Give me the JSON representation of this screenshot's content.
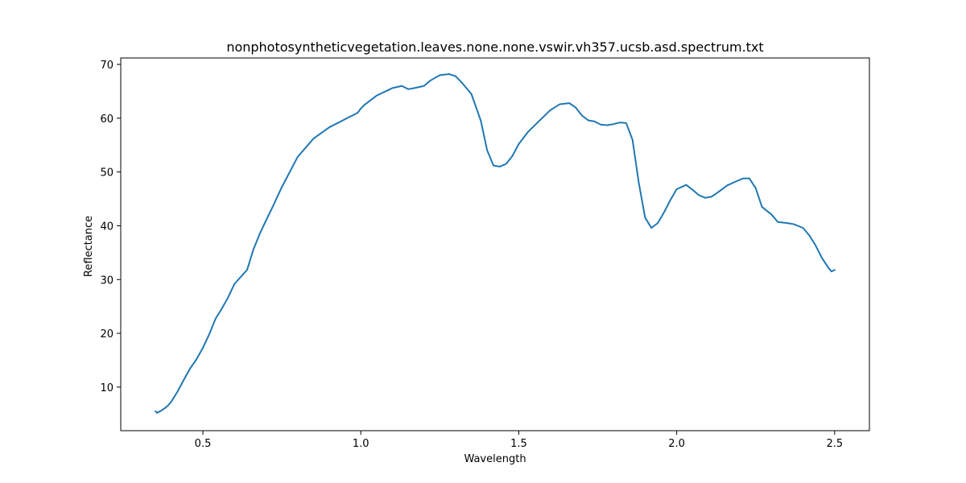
{
  "chart_data": {
    "type": "line",
    "title": "nonphotosyntheticvegetation.leaves.none.none.vswir.vh357.ucsb.asd.spectrum.txt",
    "xlabel": "Wavelength",
    "ylabel": "Reflectance",
    "xlim": [
      0.24,
      2.61
    ],
    "ylim": [
      1.9,
      71.2
    ],
    "xticks": [
      0.5,
      1.0,
      1.5,
      2.0,
      2.5
    ],
    "xtick_labels": [
      "0.5",
      "1.0",
      "1.5",
      "2.0",
      "2.5"
    ],
    "yticks": [
      10,
      20,
      30,
      40,
      50,
      60,
      70
    ],
    "ytick_labels": [
      "10",
      "20",
      "30",
      "40",
      "50",
      "60",
      "70"
    ],
    "grid": false,
    "legend": "none",
    "series": [
      {
        "color": "#1f77b4",
        "x": [
          0.35,
          0.355,
          0.36,
          0.365,
          0.37,
          0.38,
          0.39,
          0.4,
          0.42,
          0.44,
          0.46,
          0.48,
          0.5,
          0.52,
          0.54,
          0.56,
          0.58,
          0.6,
          0.62,
          0.64,
          0.66,
          0.68,
          0.7,
          0.72,
          0.75,
          0.8,
          0.85,
          0.9,
          0.95,
          0.99,
          1.0,
          1.01,
          1.05,
          1.1,
          1.13,
          1.15,
          1.17,
          1.2,
          1.22,
          1.25,
          1.28,
          1.3,
          1.32,
          1.35,
          1.38,
          1.4,
          1.42,
          1.44,
          1.46,
          1.48,
          1.5,
          1.53,
          1.57,
          1.6,
          1.63,
          1.66,
          1.68,
          1.7,
          1.72,
          1.74,
          1.76,
          1.78,
          1.8,
          1.82,
          1.84,
          1.86,
          1.88,
          1.9,
          1.92,
          1.94,
          1.96,
          1.98,
          2.0,
          2.03,
          2.05,
          2.07,
          2.09,
          2.11,
          2.13,
          2.16,
          2.19,
          2.21,
          2.23,
          2.25,
          2.27,
          2.3,
          2.32,
          2.35,
          2.37,
          2.4,
          2.42,
          2.44,
          2.46,
          2.48,
          2.49,
          2.5
        ],
        "y": [
          5.5,
          5.2,
          5.4,
          5.5,
          5.7,
          6.1,
          6.6,
          7.3,
          9.2,
          11.4,
          13.5,
          15.2,
          17.3,
          19.8,
          22.7,
          24.6,
          26.7,
          29.2,
          30.5,
          31.8,
          35.6,
          38.5,
          41.0,
          43.4,
          47.2,
          52.8,
          56.2,
          58.3,
          59.8,
          61.0,
          61.8,
          62.4,
          64.2,
          65.6,
          66.0,
          65.4,
          65.6,
          66.0,
          67.0,
          68.0,
          68.2,
          67.8,
          66.6,
          64.5,
          59.5,
          54.0,
          51.2,
          51.0,
          51.5,
          53.0,
          55.2,
          57.5,
          59.8,
          61.5,
          62.6,
          62.8,
          62.0,
          60.5,
          59.6,
          59.4,
          58.8,
          58.7,
          58.9,
          59.2,
          59.1,
          56.0,
          48.0,
          41.5,
          39.6,
          40.5,
          42.5,
          44.8,
          46.8,
          47.6,
          46.7,
          45.7,
          45.2,
          45.4,
          46.2,
          47.5,
          48.3,
          48.8,
          48.8,
          47.0,
          43.5,
          42.1,
          40.7,
          40.5,
          40.3,
          39.6,
          38.2,
          36.3,
          34.0,
          32.2,
          31.5,
          31.8
        ]
      }
    ]
  }
}
